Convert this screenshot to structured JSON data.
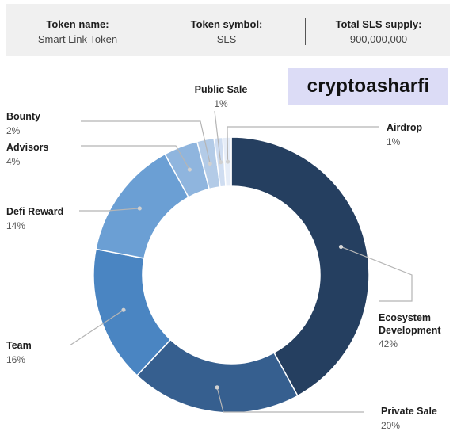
{
  "header": {
    "token_name_label": "Token name:",
    "token_name": "Smart Link Token",
    "token_symbol_label": "Token symbol:",
    "token_symbol": "SLS",
    "supply_label": "Total SLS supply:",
    "supply": "900,000,000"
  },
  "watermark": "cryptoasharfi",
  "chart_data": {
    "type": "pie",
    "donut": true,
    "categories": [
      "Ecosystem Development",
      "Private Sale",
      "Team",
      "Defi Reward",
      "Advisors",
      "Bounty",
      "Public Sale",
      "Airdrop"
    ],
    "values": [
      42,
      20,
      16,
      14,
      4,
      2,
      1,
      1
    ],
    "slice_labels": [
      {
        "name": "Ecosystem",
        "name2": "Development",
        "pct": "42%"
      },
      {
        "name": "Private Sale",
        "pct": "20%"
      },
      {
        "name": "Team",
        "pct": "16%"
      },
      {
        "name": "Defi Reward",
        "pct": "14%"
      },
      {
        "name": "Advisors",
        "pct": "4%"
      },
      {
        "name": "Bounty",
        "pct": "2%"
      },
      {
        "name": "Public Sale",
        "pct": "1%"
      },
      {
        "name": "Airdrop",
        "pct": "1%"
      }
    ],
    "colors": [
      "#253f60",
      "#365f8f",
      "#4a85c2",
      "#6b9fd4",
      "#8fb5de",
      "#b3cbe7",
      "#cfddf1",
      "#e6edf8"
    ]
  }
}
